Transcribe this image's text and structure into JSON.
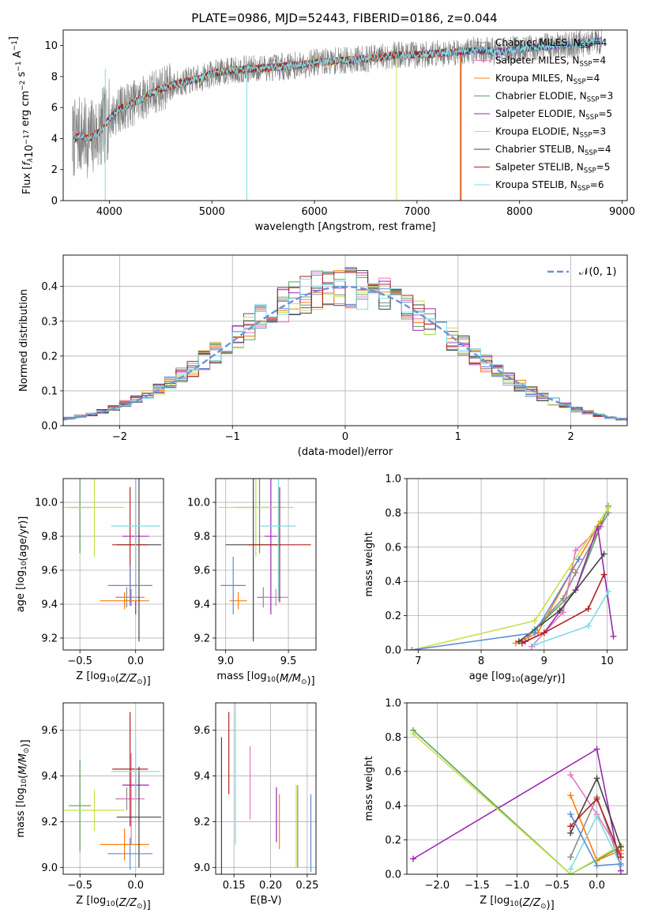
{
  "figure_title": "PLATE=0986, MJD=52443, FIBERID=0186, z=0.044",
  "colors": {
    "Chabrier MILES": "#8b8b8b",
    "Salpeter MILES": "#e377c2",
    "Kroupa MILES": "#ff7f0e",
    "Chabrier ELODIE": "#5aa05a",
    "Salpeter ELODIE": "#9c27b0",
    "Kroupa ELODIE": "#c8e04a",
    "Chabrier STELIB": "#444444",
    "Salpeter STELIB": "#b22222",
    "Kroupa STELIB": "#7fdbe6",
    "blue": "#5b8bd8",
    "gauss": "#6a93d8"
  },
  "chart_data": [
    {
      "type": "line",
      "title": "PLATE=0986, MJD=52443, FIBERID=0186, z=0.044",
      "xlabel": "wavelength [Angstrom, rest frame]",
      "ylabel": "Flux [f_λ10^-17 erg cm^-2 s^-1 A^-1]",
      "xlim": [
        3550,
        9050
      ],
      "ylim": [
        0,
        11
      ],
      "xticks": [
        4000,
        5000,
        6000,
        7000,
        8000,
        9000
      ],
      "yticks": [
        0,
        2,
        4,
        6,
        8,
        10
      ],
      "legend": [
        {
          "name": "Chabrier MILES",
          "ssp": "4"
        },
        {
          "name": "Salpeter MILES",
          "ssp": "4"
        },
        {
          "name": "Kroupa MILES",
          "ssp": "4"
        },
        {
          "name": "Chabrier ELODIE",
          "ssp": "3"
        },
        {
          "name": "Salpeter ELODIE",
          "ssp": "5"
        },
        {
          "name": "Kroupa ELODIE",
          "ssp": "3"
        },
        {
          "name": "Chabrier STELIB",
          "ssp": "4"
        },
        {
          "name": "Salpeter STELIB",
          "ssp": "5"
        },
        {
          "name": "Kroupa STELIB",
          "ssp": "6"
        }
      ],
      "legend_position": "right",
      "continuum": {
        "x": [
          3650,
          3700,
          3800,
          3900,
          4000,
          4100,
          4200,
          4300,
          4400,
          4500,
          4700,
          4900,
          5000,
          5200,
          5400,
          5600,
          5800,
          6000,
          6200,
          6400,
          6600,
          6800,
          7000,
          7200,
          7400,
          7600,
          7800,
          8000,
          8200,
          8400,
          8600,
          8800
        ],
        "y": [
          3.9,
          4.2,
          4.0,
          4.4,
          5.3,
          5.9,
          6.2,
          6.5,
          6.9,
          7.2,
          7.6,
          7.9,
          8.2,
          8.4,
          8.5,
          8.6,
          8.7,
          8.9,
          9.0,
          9.1,
          9.2,
          9.4,
          9.4,
          9.5,
          9.6,
          9.7,
          9.6,
          9.8,
          9.9,
          10.0,
          10.1,
          10.3
        ]
      },
      "model_ranges": {
        "Kroupa MILES": [
          3650,
          7420
        ],
        "Kroupa ELODIE": [
          3900,
          6800
        ],
        "Salpeter STELIB": [
          3650,
          7430
        ]
      }
    },
    {
      "type": "histogram",
      "xlabel": "(data-model)/error",
      "ylabel": "Normed distribution",
      "xlim": [
        -2.5,
        2.5
      ],
      "ylim": [
        0,
        0.49
      ],
      "xticks": [
        -2,
        -1,
        0,
        1,
        2
      ],
      "yticks": [
        0.0,
        0.1,
        0.2,
        0.3,
        0.4
      ],
      "legend": "N(0,1)",
      "legend_position": "top-right",
      "grid": true,
      "bin_width": 0.1,
      "shape_mu": 0.0,
      "shape_sigma": 1.0
    },
    {
      "type": "errorbar",
      "xlabel": "Z [log10(Z/Z☉)]",
      "ylabel": "age [log10(age/yr)]",
      "xlim": [
        -0.65,
        0.25
      ],
      "ylim": [
        9.13,
        10.14
      ],
      "xticks": [
        -0.5,
        0.0
      ],
      "yticks": [
        9.2,
        9.4,
        9.6,
        9.8,
        10.0
      ],
      "points": [
        {
          "model": "Chabrier MILES",
          "x": -0.08,
          "y": 9.44,
          "xerr": 0.1,
          "yerr": 0.06
        },
        {
          "model": "Salpeter MILES",
          "x": -0.04,
          "y": 9.44,
          "xerr": 0.12,
          "yerr": 0.05
        },
        {
          "model": "Kroupa MILES",
          "x": -0.1,
          "y": 9.42,
          "xerr": 0.22,
          "yerr": 0.05
        },
        {
          "model": "Chabrier ELODIE",
          "x": -0.5,
          "y": 9.97,
          "xerr": 0.1,
          "yerr": 0.27
        },
        {
          "model": "Salpeter ELODIE",
          "x": 0.0,
          "y": 9.8,
          "xerr": 0.12,
          "yerr": 0.46
        },
        {
          "model": "Kroupa ELODIE",
          "x": -0.37,
          "y": 9.97,
          "xerr": 0.27,
          "yerr": 0.29
        },
        {
          "model": "Chabrier STELIB",
          "x": 0.03,
          "y": 9.75,
          "xerr": 0.2,
          "yerr": 0.57
        },
        {
          "model": "Salpeter STELIB",
          "x": -0.05,
          "y": 9.75,
          "xerr": 0.16,
          "yerr": 0.34
        },
        {
          "model": "Kroupa STELIB",
          "x": 0.0,
          "y": 9.86,
          "xerr": 0.22,
          "yerr": 0.44
        },
        {
          "model": "blue",
          "x": -0.05,
          "y": 9.51,
          "xerr": 0.2,
          "yerr": 0.12
        }
      ]
    },
    {
      "type": "errorbar",
      "xlabel": "mass [log10(M/M☉)]",
      "xlim": [
        8.92,
        9.72
      ],
      "ylim": [
        9.13,
        10.14
      ],
      "xticks": [
        9.0,
        9.5
      ],
      "yticks": [
        9.2,
        9.4,
        9.6,
        9.8,
        10.0
      ],
      "points": [
        {
          "model": "Chabrier MILES",
          "x": 9.3,
          "y": 9.44,
          "xerr": 0.05,
          "yerr": 0.06
        },
        {
          "model": "Salpeter MILES",
          "x": 9.4,
          "y": 9.44,
          "xerr": 0.1,
          "yerr": 0.05
        },
        {
          "model": "Kroupa MILES",
          "x": 9.1,
          "y": 9.42,
          "xerr": 0.07,
          "yerr": 0.05
        },
        {
          "model": "Chabrier ELODIE",
          "x": 9.27,
          "y": 9.97,
          "xerr": 0.2,
          "yerr": 0.27
        },
        {
          "model": "Salpeter ELODIE",
          "x": 9.36,
          "y": 9.8,
          "xerr": 0.05,
          "yerr": 0.46
        },
        {
          "model": "Kroupa ELODIE",
          "x": 9.24,
          "y": 9.97,
          "xerr": 0.3,
          "yerr": 0.29
        },
        {
          "model": "Chabrier STELIB",
          "x": 9.22,
          "y": 9.75,
          "xerr": 0.22,
          "yerr": 0.57
        },
        {
          "model": "Salpeter STELIB",
          "x": 9.43,
          "y": 9.75,
          "xerr": 0.25,
          "yerr": 0.34
        },
        {
          "model": "Kroupa STELIB",
          "x": 9.42,
          "y": 9.86,
          "xerr": 0.14,
          "yerr": 0.44
        },
        {
          "model": "blue",
          "x": 9.06,
          "y": 9.51,
          "xerr": 0.1,
          "yerr": 0.17
        }
      ]
    },
    {
      "type": "line",
      "xlabel": "age [log10(age/yr)]",
      "ylabel": "mass weight",
      "xlim": [
        6.82,
        10.32
      ],
      "ylim": [
        0,
        1.0
      ],
      "xticks": [
        7,
        8,
        9,
        10
      ],
      "yticks": [
        0.0,
        0.2,
        0.4,
        0.6,
        0.8,
        1.0
      ],
      "series": [
        {
          "model": "Chabrier MILES",
          "x": [
            8.75,
            9.3,
            9.5,
            10.02
          ],
          "y": [
            0.08,
            0.3,
            0.45,
            0.8
          ]
        },
        {
          "model": "Salpeter MILES",
          "x": [
            8.8,
            9.3,
            9.5,
            9.9
          ],
          "y": [
            0.02,
            0.22,
            0.58,
            0.72
          ]
        },
        {
          "model": "Kroupa MILES",
          "x": [
            8.55,
            8.9,
            9.45,
            9.9
          ],
          "y": [
            0.04,
            0.1,
            0.47,
            0.75
          ]
        },
        {
          "model": "Chabrier ELODIE",
          "x": [
            8.85,
            9.5,
            10.02
          ],
          "y": [
            0.12,
            0.35,
            0.84
          ]
        },
        {
          "model": "Salpeter ELODIE",
          "x": [
            8.7,
            9.0,
            9.5,
            9.85,
            10.1
          ],
          "y": [
            0.05,
            0.1,
            0.35,
            0.72,
            0.08
          ]
        },
        {
          "model": "Kroupa ELODIE",
          "x": [
            6.9,
            8.85,
            10.02
          ],
          "y": [
            0.0,
            0.17,
            0.83
          ]
        },
        {
          "model": "Chabrier STELIB",
          "x": [
            8.6,
            9.25,
            9.95
          ],
          "y": [
            0.05,
            0.23,
            0.56
          ]
        },
        {
          "model": "Salpeter STELIB",
          "x": [
            8.65,
            9.0,
            9.7,
            9.95
          ],
          "y": [
            0.04,
            0.1,
            0.24,
            0.44
          ]
        },
        {
          "model": "Kroupa STELIB",
          "x": [
            8.85,
            9.7,
            10.02
          ],
          "y": [
            0.03,
            0.14,
            0.34
          ]
        },
        {
          "model": "blue",
          "x": [
            6.9,
            8.85,
            9.55
          ],
          "y": [
            0.0,
            0.1,
            0.53
          ]
        }
      ]
    },
    {
      "type": "errorbar",
      "xlabel": "Z [log10(Z/Z☉)]",
      "ylabel": "mass [log10(M/M☉)]",
      "xlim": [
        -0.65,
        0.25
      ],
      "ylim": [
        8.97,
        9.72
      ],
      "xticks": [
        -0.5,
        0.0
      ],
      "yticks": [
        9.0,
        9.2,
        9.4,
        9.6
      ],
      "points": [
        {
          "model": "Chabrier MILES",
          "x": -0.08,
          "y": 9.3,
          "xerr": 0.1,
          "yerr": 0.05
        },
        {
          "model": "Salpeter MILES",
          "x": -0.04,
          "y": 9.3,
          "xerr": 0.12,
          "yerr": 0.2
        },
        {
          "model": "Kroupa MILES",
          "x": -0.1,
          "y": 9.1,
          "xerr": 0.22,
          "yerr": 0.07
        },
        {
          "model": "Chabrier ELODIE",
          "x": -0.5,
          "y": 9.27,
          "xerr": 0.1,
          "yerr": 0.2
        },
        {
          "model": "Salpeter ELODIE",
          "x": 0.0,
          "y": 9.36,
          "xerr": 0.12,
          "yerr": 0.05
        },
        {
          "model": "Kroupa ELODIE",
          "x": -0.37,
          "y": 9.25,
          "xerr": 0.27,
          "yerr": 0.09
        },
        {
          "model": "Chabrier STELIB",
          "x": 0.03,
          "y": 9.22,
          "xerr": 0.2,
          "yerr": 0.22
        },
        {
          "model": "Salpeter STELIB",
          "x": -0.05,
          "y": 9.43,
          "xerr": 0.16,
          "yerr": 0.25
        },
        {
          "model": "Kroupa STELIB",
          "x": 0.0,
          "y": 9.42,
          "xerr": 0.22,
          "yerr": 0.14
        },
        {
          "model": "blue",
          "x": -0.05,
          "y": 9.06,
          "xerr": 0.2,
          "yerr": 0.07
        }
      ]
    },
    {
      "type": "errorbar",
      "xlabel": "E(B-V)",
      "xlim": [
        0.125,
        0.262
      ],
      "ylim": [
        8.97,
        9.72
      ],
      "xticks": [
        0.15,
        0.2,
        0.25
      ],
      "yticks": [
        9.0,
        9.2,
        9.4,
        9.6
      ],
      "points": [
        {
          "model": "Chabrier STELIB",
          "x": 0.133,
          "y": 9.22,
          "yerr": 0.35
        },
        {
          "model": "Salpeter STELIB",
          "x": 0.143,
          "y": 9.5,
          "yerr": 0.18
        },
        {
          "model": "Kroupa STELIB",
          "x": 0.152,
          "y": 9.42,
          "yerr": 0.32
        },
        {
          "model": "Salpeter MILES",
          "x": 0.172,
          "y": 9.37,
          "yerr": 0.16
        },
        {
          "model": "Salpeter ELODIE",
          "x": 0.208,
          "y": 9.23,
          "yerr": 0.12
        },
        {
          "model": "Kroupa MILES",
          "x": 0.212,
          "y": 9.2,
          "yerr": 0.12
        },
        {
          "model": "Kroupa ELODIE",
          "x": 0.235,
          "y": 9.18,
          "yerr": 0.18
        },
        {
          "model": "Chabrier MILES",
          "x": 0.237,
          "y": 9.18,
          "yerr": 0.18
        },
        {
          "model": "blue",
          "x": 0.255,
          "y": 9.15,
          "yerr": 0.17
        }
      ]
    },
    {
      "type": "line",
      "xlabel": "Z [log10(Z/Z☉)]",
      "ylabel": "mass weight",
      "xlim": [
        -2.38,
        0.38
      ],
      "ylim": [
        0,
        1.0
      ],
      "xticks": [
        -2.0,
        -1.5,
        -1.0,
        -0.5,
        0.0
      ],
      "yticks": [
        0.0,
        0.2,
        0.4,
        0.6,
        0.8,
        1.0
      ],
      "series": [
        {
          "model": "Chabrier MILES",
          "x": [
            -0.33,
            0.0,
            0.3
          ],
          "y": [
            0.1,
            0.45,
            0.05
          ]
        },
        {
          "model": "Salpeter MILES",
          "x": [
            -0.33,
            0.0,
            0.3
          ],
          "y": [
            0.58,
            0.35,
            0.12
          ]
        },
        {
          "model": "Kroupa MILES",
          "x": [
            -0.33,
            0.0,
            0.3
          ],
          "y": [
            0.46,
            0.08,
            0.14
          ]
        },
        {
          "model": "Chabrier ELODIE",
          "x": [
            -2.3,
            -0.33,
            0.3
          ],
          "y": [
            0.84,
            0.0,
            0.16
          ]
        },
        {
          "model": "Salpeter ELODIE",
          "x": [
            -2.3,
            0.0,
            0.3
          ],
          "y": [
            0.09,
            0.73,
            0.02
          ]
        },
        {
          "model": "Kroupa ELODIE",
          "x": [
            -2.3,
            -0.33,
            0.3
          ],
          "y": [
            0.82,
            0.0,
            0.17
          ]
        },
        {
          "model": "Chabrier STELIB",
          "x": [
            -0.33,
            0.0,
            0.3
          ],
          "y": [
            0.24,
            0.56,
            0.16
          ]
        },
        {
          "model": "Salpeter STELIB",
          "x": [
            -0.33,
            0.0,
            0.3
          ],
          "y": [
            0.28,
            0.44,
            0.1
          ]
        },
        {
          "model": "Kroupa STELIB",
          "x": [
            -0.33,
            0.0,
            0.3
          ],
          "y": [
            0.03,
            0.34,
            0.05
          ]
        },
        {
          "model": "blue",
          "x": [
            -0.33,
            0.0,
            0.3
          ],
          "y": [
            0.35,
            0.05,
            0.06
          ]
        }
      ]
    }
  ]
}
